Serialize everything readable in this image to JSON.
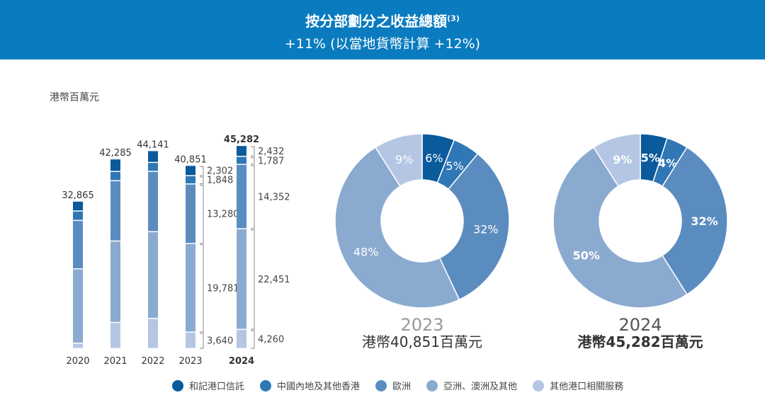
{
  "header": {
    "title": "按分部劃分之收益總額",
    "footnote": "(3)",
    "subtitle": "+11% (以當地貨幣計算 +12%)"
  },
  "colors": [
    "#0a5a9c",
    "#2f77b5",
    "#5b8cc0",
    "#8aaad0",
    "#b4c6e3"
  ],
  "header_color": "#0a7bbf",
  "chart_data": [
    {
      "type": "bar",
      "stacked": true,
      "ylabel": "港幣百萬元",
      "categories": [
        "2020",
        "2021",
        "2022",
        "2023",
        "2024"
      ],
      "totals": [
        "32,865",
        "42,285",
        "44,141",
        "40,851",
        "45,282"
      ],
      "series": [
        {
          "name": "和記港口信託",
          "values": [
            2200,
            2800,
            2640,
            2302,
            2432
          ]
        },
        {
          "name": "中國內地及其他香港",
          "values": [
            2100,
            2060,
            2000,
            1848,
            1787
          ]
        },
        {
          "name": "歐洲",
          "values": [
            10800,
            13460,
            13450,
            13280,
            14352
          ]
        },
        {
          "name": "亞洲、澳洲及其他",
          "values": [
            16565,
            18165,
            19350,
            19781,
            22451
          ]
        },
        {
          "name": "其他港口相關服務",
          "values": [
            1200,
            5800,
            6701,
            3640,
            4260
          ]
        }
      ],
      "segment_labels": {
        "2023": [
          "2,302",
          "1,848",
          "13,280",
          "19,781",
          "3,640"
        ],
        "2024": [
          "2,432",
          "1,787",
          "14,352",
          "22,451",
          "4,260"
        ]
      }
    },
    {
      "type": "pie",
      "donut": true,
      "year": "2023",
      "caption": "港幣40,851百萬元",
      "values": [
        6,
        5,
        32,
        48,
        9
      ],
      "labels": [
        "6%",
        "5%",
        "32%",
        "48%",
        "9%"
      ]
    },
    {
      "type": "pie",
      "donut": true,
      "year": "2024",
      "caption": "港幣45,282百萬元",
      "values": [
        5,
        4,
        32,
        50,
        9
      ],
      "labels": [
        "5%",
        "4%",
        "32%",
        "50%",
        "9%"
      ]
    }
  ],
  "legend": [
    "和記港口信託",
    "中國內地及其他香港",
    "歐洲",
    "亞洲、澳洲及其他",
    "其他港口相關服務"
  ]
}
